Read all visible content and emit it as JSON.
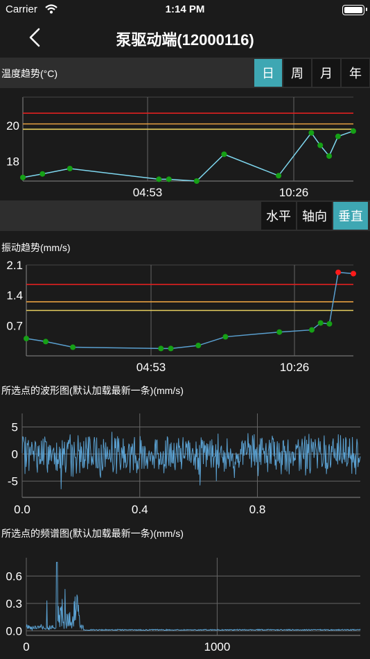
{
  "status_bar": {
    "carrier": "Carrier",
    "time": "1:14 PM"
  },
  "nav": {
    "title": "泵驱动端(12000116)"
  },
  "temperature": {
    "label": "温度趋势(°C)",
    "periods": [
      "日",
      "周",
      "月",
      "年"
    ],
    "active_period": "日"
  },
  "vibration_direction": {
    "options": [
      "水平",
      "轴向",
      "垂直"
    ],
    "active": "垂直"
  },
  "vibration": {
    "label": "振动趋势(mm/s)"
  },
  "waveform": {
    "label": "所选点的波形图(默认加载最新一条)(mm/s)"
  },
  "spectrum": {
    "label": "所选点的频谱图(默认加载最新一条)(mm/s)"
  },
  "colors": {
    "alarm_red": "#e02020",
    "warn_orange": "#e8a040",
    "warn_yellow": "#e8d060",
    "temp_line": "#7fd8f0",
    "vib_line": "#5aa0d0",
    "point_green": "#16a016",
    "point_red": "#ff1a1a",
    "accent": "#3ea7b3"
  },
  "chart_data": [
    {
      "type": "line",
      "title": "温度趋势(°C)",
      "x_tick_labels": [
        "04:53",
        "10:26"
      ],
      "y_ticks": [
        18,
        20
      ],
      "ylim": [
        16.9,
        21.6
      ],
      "thresholds": [
        20.7,
        20.1,
        19.8
      ],
      "x": [
        "00:00",
        "00:55",
        "02:12",
        "06:22",
        "06:50",
        "08:08",
        "09:25",
        "11:58",
        "13:30",
        "13:55",
        "14:20",
        "14:45",
        "15:28"
      ],
      "values": [
        17.1,
        17.3,
        17.6,
        17.0,
        17.0,
        16.9,
        18.4,
        17.2,
        19.6,
        18.9,
        18.3,
        19.4,
        19.7
      ]
    },
    {
      "type": "line",
      "title": "振动趋势(mm/s)",
      "x_tick_labels": [
        "04:53",
        "10:26"
      ],
      "y_ticks": [
        0.7,
        1.4,
        2.1
      ],
      "ylim": [
        0,
        2.1
      ],
      "thresholds": [
        1.65,
        1.25,
        1.05
      ],
      "x": [
        "00:00",
        "00:55",
        "02:12",
        "06:22",
        "06:50",
        "08:08",
        "09:25",
        "11:58",
        "13:30",
        "13:55",
        "14:20",
        "14:45",
        "15:28"
      ],
      "values": [
        0.4,
        0.33,
        0.2,
        0.17,
        0.17,
        0.24,
        0.44,
        0.55,
        0.6,
        0.76,
        0.74,
        1.93,
        1.9
      ],
      "red_points_from_index": 11
    },
    {
      "type": "line",
      "title": "所选点的波形图(默认加载最新一条)(mm/s)",
      "x_ticks": [
        0.0,
        0.4,
        0.8
      ],
      "xlim": [
        0,
        1.15
      ],
      "y_ticks": [
        5,
        0,
        -5
      ],
      "ylim": [
        -8,
        7.5
      ],
      "signal": "noise, amplitude ~3 mm/s, peaks ~6 mm/s",
      "samples": 600
    },
    {
      "type": "line",
      "title": "所选点的频谱图(默认加载最新一条)(mm/s)",
      "x_ticks": [
        0,
        1000
      ],
      "xlim": [
        0,
        1750
      ],
      "y_ticks": [
        0.0,
        0.3,
        0.6
      ],
      "ylim": [
        -0.05,
        0.8
      ],
      "peak_frequency": 160,
      "peak_value": 0.75,
      "dominant_band": [
        160,
        280
      ]
    }
  ]
}
